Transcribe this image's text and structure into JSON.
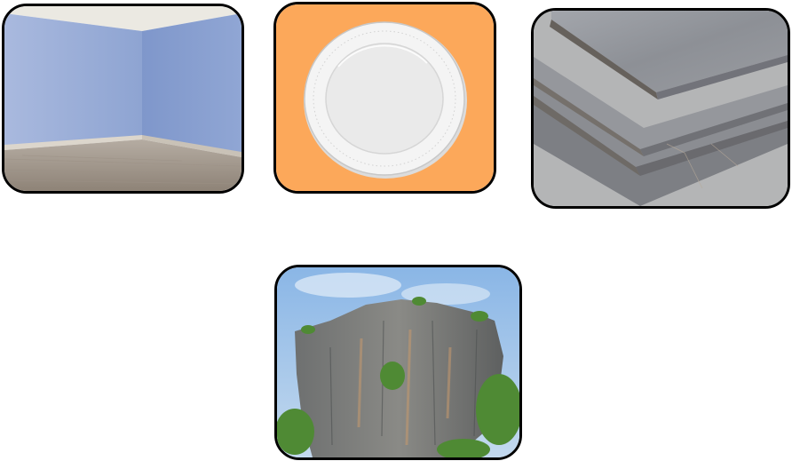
{
  "tiles": [
    {
      "name": "empty-room",
      "colors": {
        "wall": "#8fa6d3",
        "floor": "#a69a8e",
        "ceiling": "#eceae4"
      }
    },
    {
      "name": "white-plate",
      "colors": {
        "background": "#fca85a",
        "plate": "#f2f2f2"
      }
    },
    {
      "name": "steel-plates",
      "colors": {
        "metal": "#8c8e94",
        "edge": "#6f6a66"
      }
    },
    {
      "name": "rock-formation",
      "colors": {
        "sky": "#9cc3ea",
        "rock": "#77797a",
        "vegetation": "#4f8a34"
      }
    }
  ]
}
